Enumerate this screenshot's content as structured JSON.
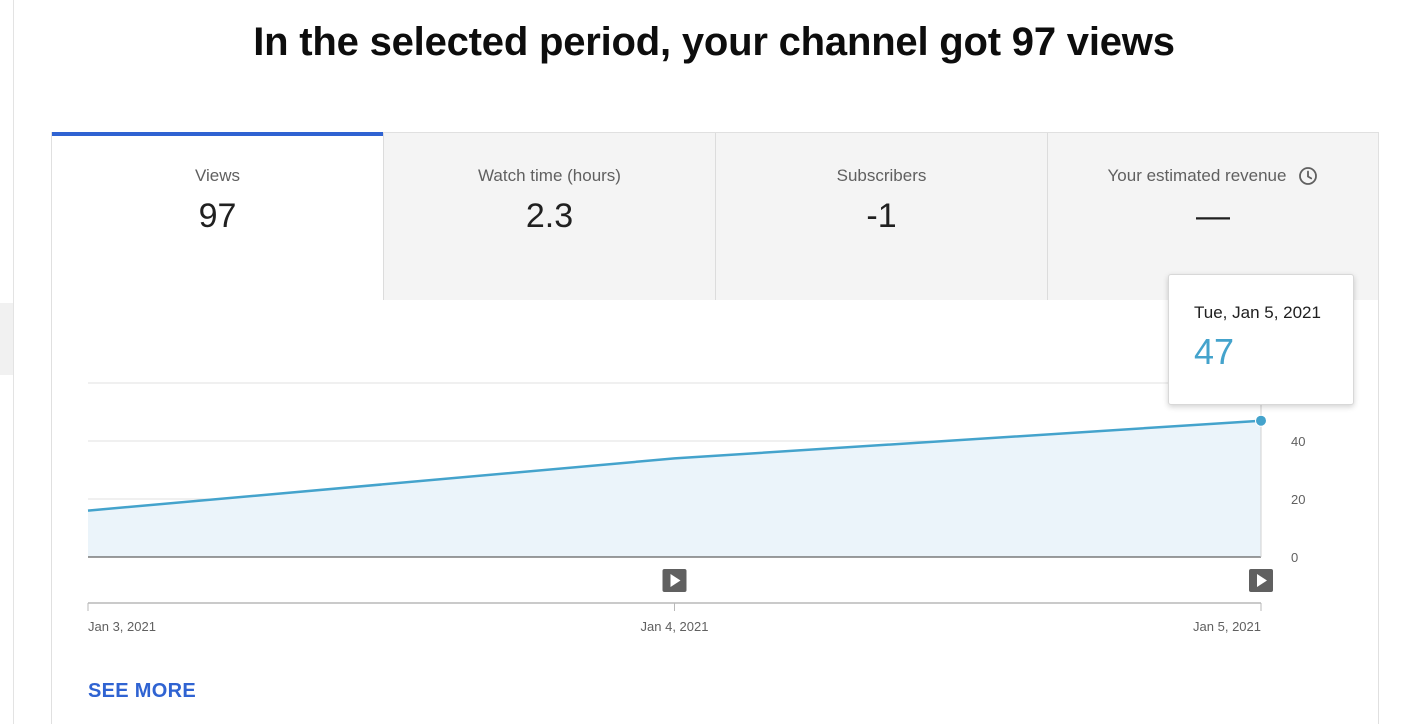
{
  "headline": "In the selected period, your channel got 97 views",
  "tabs": [
    {
      "label": "Views",
      "value": "97"
    },
    {
      "label": "Watch time (hours)",
      "value": "2.3"
    },
    {
      "label": "Subscribers",
      "value": "-1"
    },
    {
      "label": "Your estimated revenue",
      "value": "—"
    }
  ],
  "tooltip": {
    "date": "Tue, Jan 5, 2021",
    "value": "47"
  },
  "see_more": "SEE MORE",
  "colors": {
    "accent": "#2f63d2",
    "line": "#44a3cc",
    "fill": "#ebf4fa"
  },
  "icons": {
    "revenue_info": "clock-icon",
    "video_marker": "play-icon"
  },
  "chart_data": {
    "type": "area",
    "x": [
      "Jan 3, 2021",
      "Jan 4, 2021",
      "Jan 5, 2021"
    ],
    "series": [
      {
        "values": [
          16,
          34,
          47
        ]
      }
    ],
    "y_ticks": [
      0,
      20,
      40
    ],
    "x_ticks": [
      "Jan 3, 2021",
      "Jan 4, 2021",
      "Jan 5, 2021"
    ],
    "ylim": [
      0,
      60
    ],
    "highlight_index": 2,
    "grid": true,
    "y_axis_position": "right"
  }
}
